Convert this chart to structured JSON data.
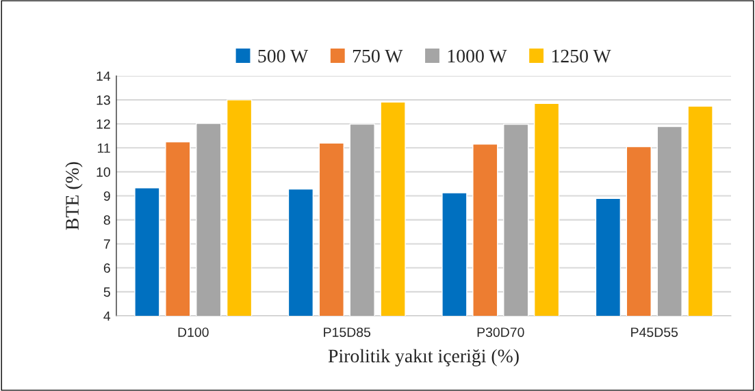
{
  "chart_data": {
    "type": "bar",
    "xlabel": "Pirolitik yakıt içeriği (%)",
    "ylabel": "BTE (%)",
    "categories": [
      "D100",
      "P15D85",
      "P30D70",
      "P45D55"
    ],
    "series": [
      {
        "name": "500 W",
        "color": "#0070c0",
        "values": [
          9.33,
          9.28,
          9.13,
          8.89
        ]
      },
      {
        "name": "750 W",
        "color": "#ed7d31",
        "values": [
          11.25,
          11.2,
          11.16,
          11.05
        ]
      },
      {
        "name": "1000 W",
        "color": "#a5a5a5",
        "values": [
          12.02,
          11.99,
          11.98,
          11.89
        ]
      },
      {
        "name": "1250 W",
        "color": "#ffc000",
        "values": [
          13.0,
          12.91,
          12.85,
          12.74
        ]
      }
    ],
    "ylim": [
      4,
      14
    ],
    "yticks": [
      4,
      5,
      6,
      7,
      8,
      9,
      10,
      11,
      12,
      13,
      14
    ],
    "grid": "y",
    "legend": "top"
  }
}
